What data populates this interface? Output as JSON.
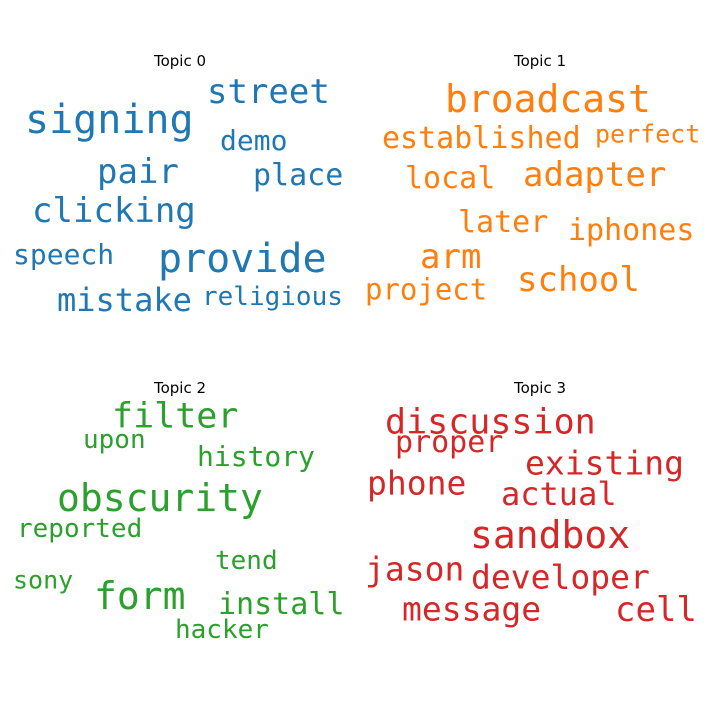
{
  "chart_data": {
    "type": "wordcloud",
    "panels": [
      {
        "title": "Topic 0",
        "color": "#1f77b4",
        "words": [
          "signing",
          "street",
          "demo",
          "pair",
          "place",
          "clicking",
          "provide",
          "speech",
          "mistake",
          "religious"
        ]
      },
      {
        "title": "Topic 1",
        "color": "#ff7f0e",
        "words": [
          "broadcast",
          "established",
          "perfect",
          "adapter",
          "local",
          "later",
          "iphones",
          "arm",
          "school",
          "project"
        ]
      },
      {
        "title": "Topic 2",
        "color": "#2ca02c",
        "words": [
          "filter",
          "upon",
          "history",
          "obscurity",
          "reported",
          "tend",
          "form",
          "sony",
          "install",
          "hacker"
        ]
      },
      {
        "title": "Topic 3",
        "color": "#d62728",
        "words": [
          "discussion",
          "proper",
          "existing",
          "phone",
          "actual",
          "sandbox",
          "jason",
          "developer",
          "message",
          "cell"
        ]
      }
    ]
  }
}
